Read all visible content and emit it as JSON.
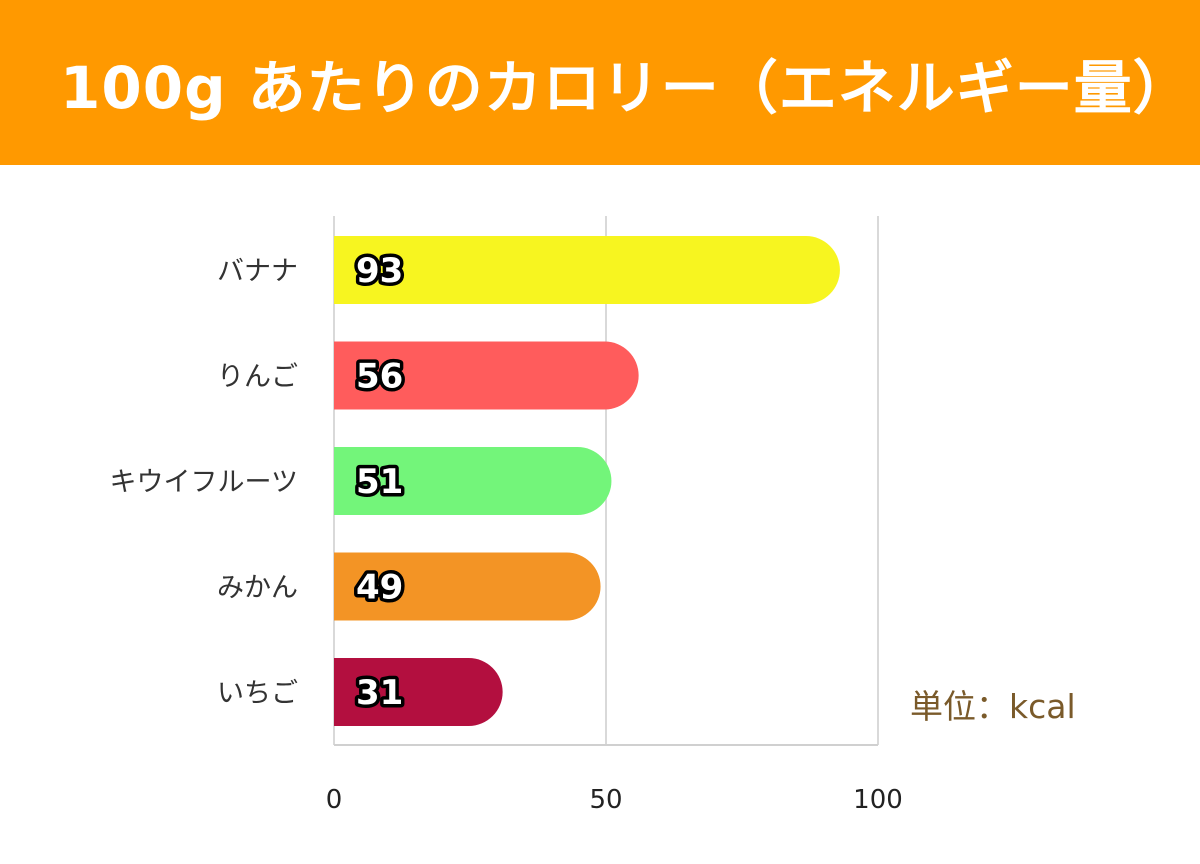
{
  "title": "100g あたりのカロリー（エネルギー量）",
  "unit_label": "単位：kcal",
  "chart_data": {
    "type": "bar",
    "orientation": "horizontal",
    "categories": [
      "バナナ",
      "りんご",
      "キウイフルーツ",
      "みかん",
      "いちご"
    ],
    "values": [
      93,
      56,
      51,
      49,
      31
    ],
    "colors": [
      "#f7f520",
      "#ff5c5c",
      "#73f57a",
      "#f39425",
      "#b30f3f"
    ],
    "xlim": [
      0,
      100
    ],
    "xticks": [
      0,
      50,
      100
    ],
    "grid": true,
    "legend": "none"
  }
}
